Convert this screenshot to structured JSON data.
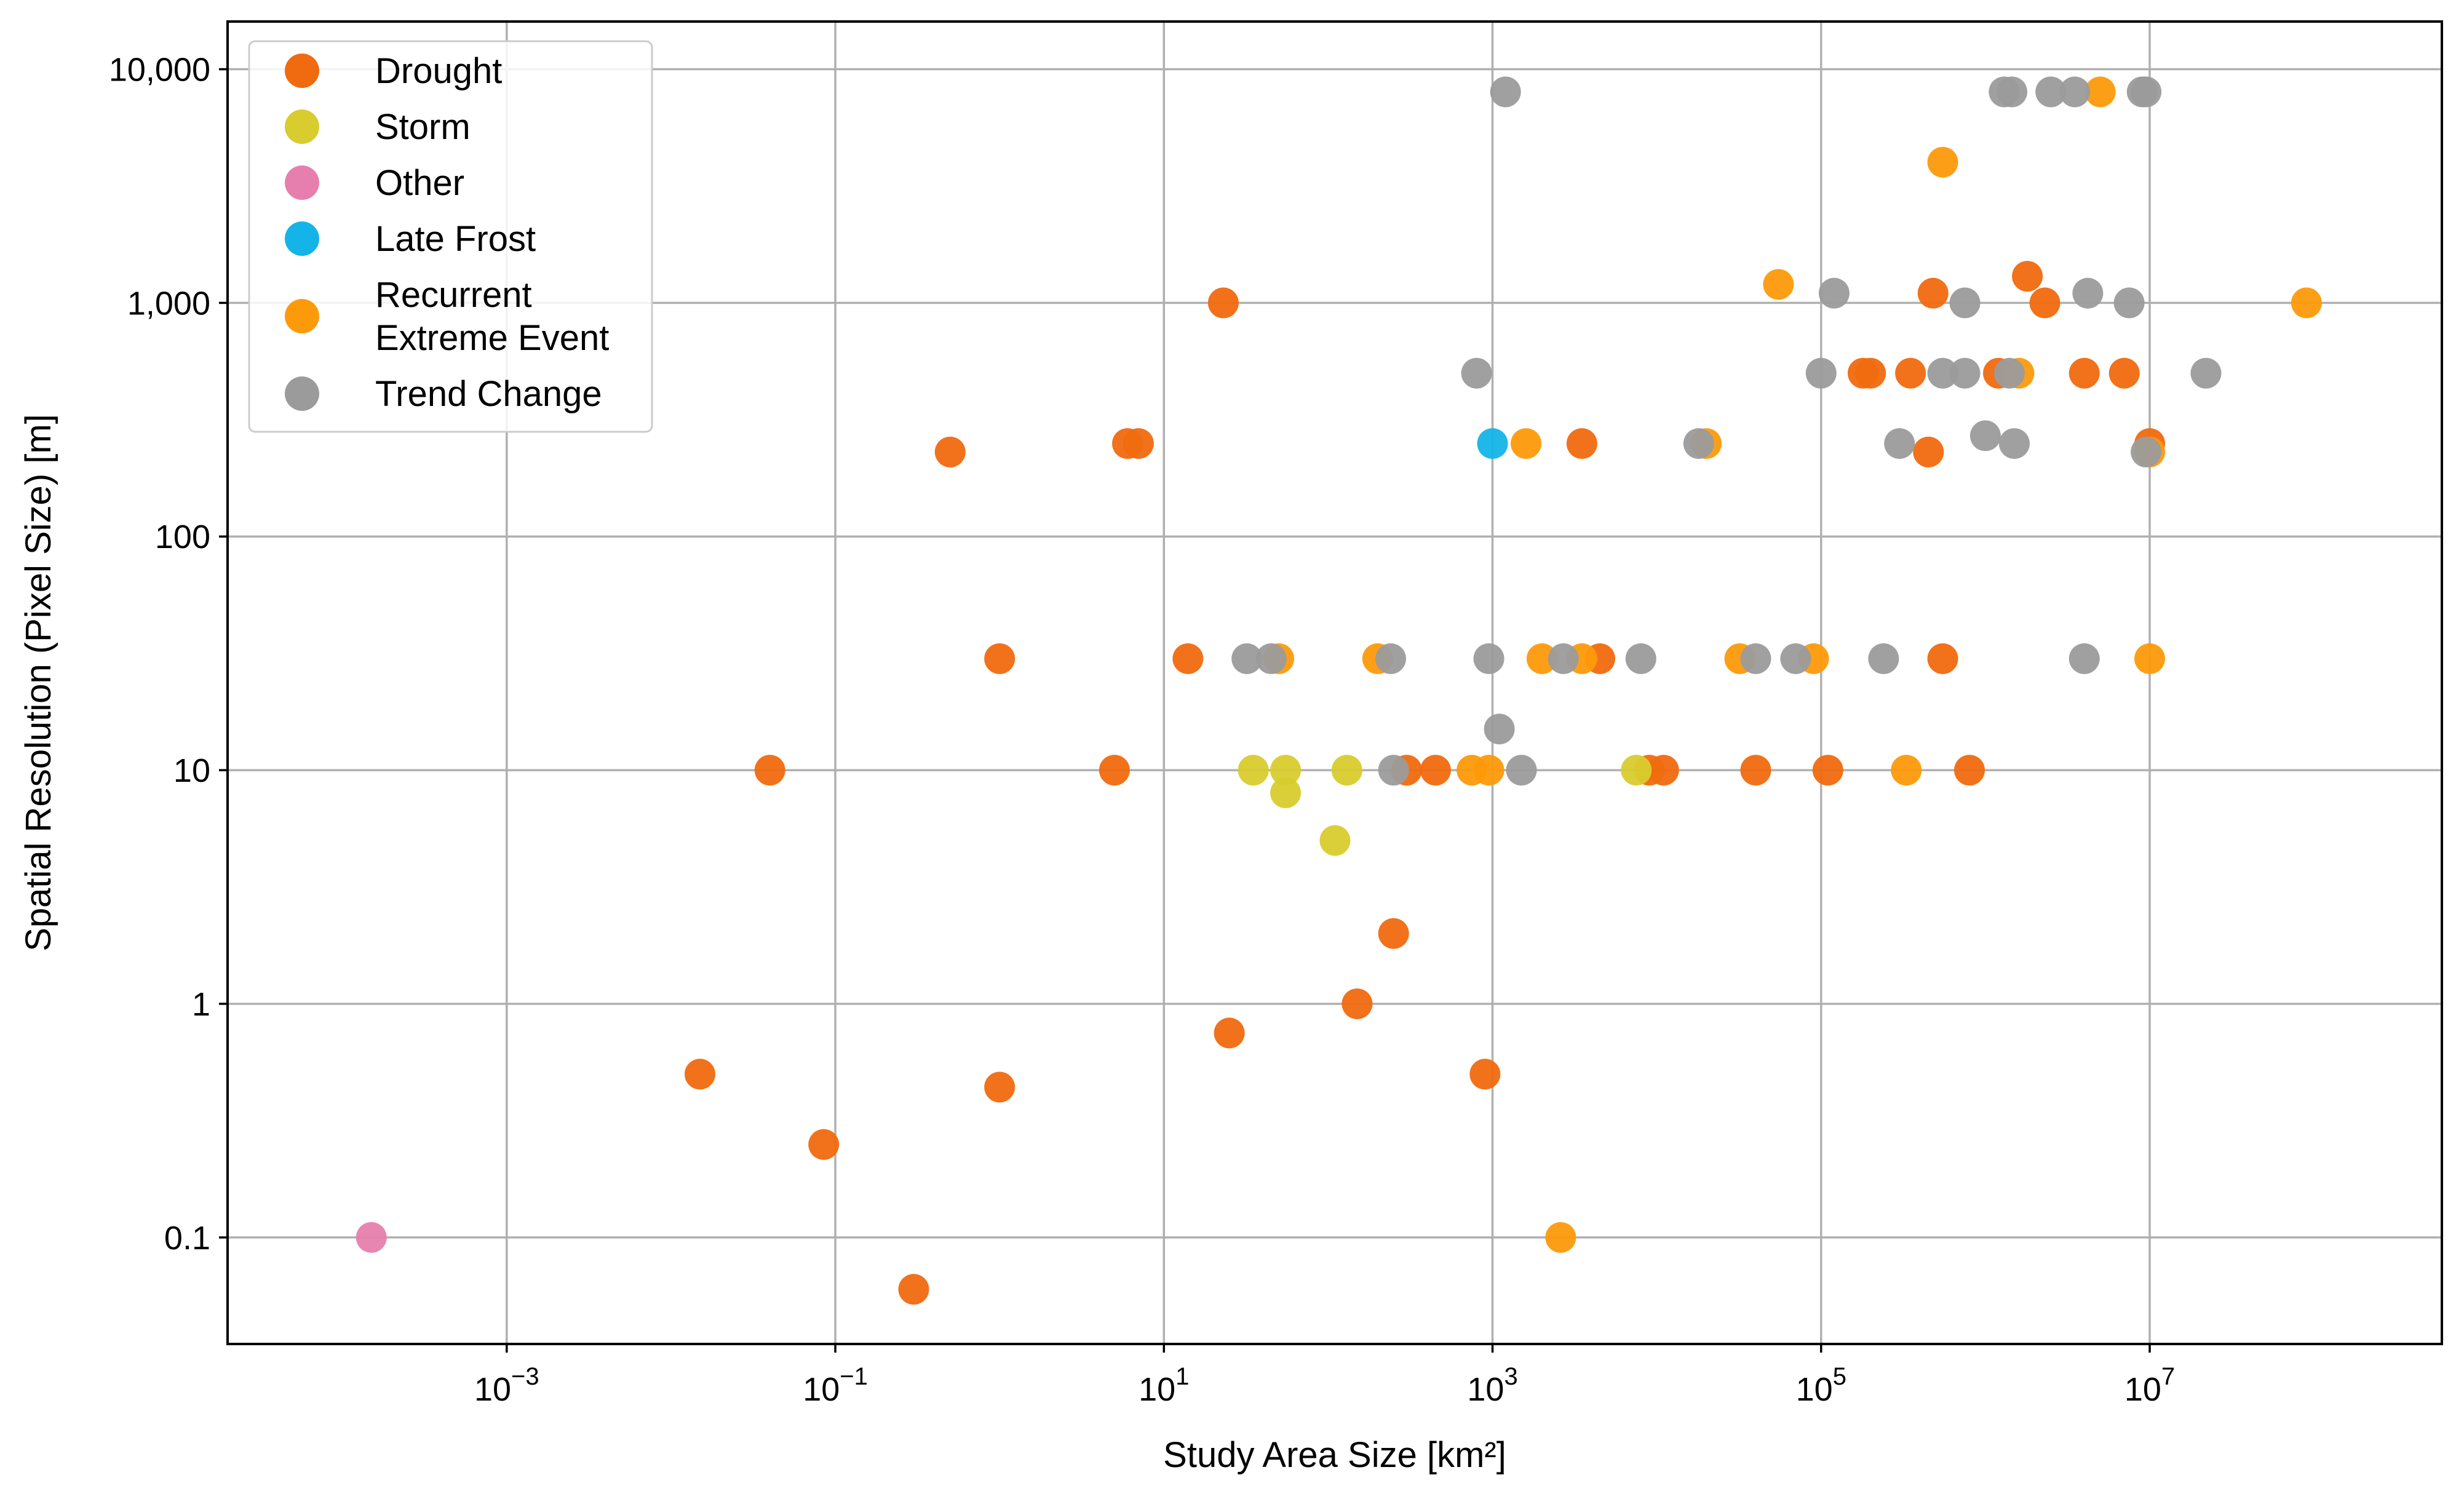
{
  "chart_data": {
    "type": "scatter",
    "title": "",
    "xlabel": "Study Area Size [km²]",
    "ylabel": "Spatial Resolution (Pixel Size) [m]",
    "xscale": "log",
    "yscale": "log",
    "xlim": [
      2e-05,
      600000000
    ],
    "ylim": [
      0.035,
      16000
    ],
    "grid": true,
    "legend_position": "top-left",
    "x_ticks": [
      {
        "value": 0.001,
        "base": "10",
        "exp": "−3"
      },
      {
        "value": 0.1,
        "base": "10",
        "exp": "−1"
      },
      {
        "value": 10,
        "base": "10",
        "exp": "1"
      },
      {
        "value": 1000,
        "base": "10",
        "exp": "3"
      },
      {
        "value": 100000,
        "base": "10",
        "exp": "5"
      },
      {
        "value": 10000000,
        "base": "10",
        "exp": "7"
      }
    ],
    "y_ticks": [
      {
        "value": 0.1,
        "label": "0.1"
      },
      {
        "value": 1,
        "label": "1"
      },
      {
        "value": 10,
        "label": "10"
      },
      {
        "value": 100,
        "label": "100"
      },
      {
        "value": 1000,
        "label": "1,000"
      },
      {
        "value": 10000,
        "label": "10,000"
      }
    ],
    "series": [
      {
        "name": "Drought",
        "color": "#f06a0f",
        "points": [
          [
            0.015,
            0.5
          ],
          [
            0.04,
            10
          ],
          [
            0.085,
            0.25
          ],
          [
            0.3,
            0.06
          ],
          [
            0.5,
            230
          ],
          [
            1.0,
            30
          ],
          [
            1.0,
            0.44
          ],
          [
            5.0,
            10
          ],
          [
            6.0,
            250
          ],
          [
            7.0,
            250
          ],
          [
            14,
            30
          ],
          [
            23,
            1000
          ],
          [
            25,
            0.75
          ],
          [
            150,
            1.0
          ],
          [
            250,
            2.0
          ],
          [
            300,
            10
          ],
          [
            450,
            10
          ],
          [
            900,
            0.5
          ],
          [
            3500,
            250
          ],
          [
            4500,
            30
          ],
          [
            9000,
            10
          ],
          [
            11000,
            10
          ],
          [
            40000,
            10
          ],
          [
            110000,
            10
          ],
          [
            180000,
            500
          ],
          [
            200000,
            500
          ],
          [
            350000,
            500
          ],
          [
            450000,
            230
          ],
          [
            480000,
            1100
          ],
          [
            550000,
            30
          ],
          [
            800000,
            10
          ],
          [
            1200000,
            500
          ],
          [
            1800000,
            1300
          ],
          [
            2300000,
            1000
          ],
          [
            4000000,
            500
          ],
          [
            7000000,
            500
          ],
          [
            10000000,
            250
          ]
        ]
      },
      {
        "name": "Storm",
        "color": "#d8cc2e",
        "points": [
          [
            35,
            10
          ],
          [
            55,
            10
          ],
          [
            55,
            8
          ],
          [
            110,
            5
          ],
          [
            130,
            10
          ],
          [
            7500,
            10
          ]
        ]
      },
      {
        "name": "Other",
        "color": "#e77fae",
        "points": [
          [
            0.00015,
            0.1
          ]
        ]
      },
      {
        "name": "Late Frost",
        "color": "#14b4e8",
        "points": [
          [
            1000,
            250
          ]
        ]
      },
      {
        "name": "Recurrent\nExtreme Event",
        "color": "#fd9a0a",
        "points": [
          [
            50,
            30
          ],
          [
            200,
            30
          ],
          [
            750,
            10
          ],
          [
            950,
            10
          ],
          [
            1600,
            250
          ],
          [
            2000,
            30
          ],
          [
            2600,
            0.1
          ],
          [
            3500,
            30
          ],
          [
            20000,
            250
          ],
          [
            32000,
            30
          ],
          [
            90000,
            30
          ],
          [
            330000,
            10
          ],
          [
            550000,
            4000
          ],
          [
            55000,
            1200
          ],
          [
            1600000,
            500
          ],
          [
            5000000,
            8000
          ],
          [
            10000000,
            230
          ],
          [
            10000000,
            30
          ],
          [
            90000000,
            1000
          ]
        ]
      },
      {
        "name": "Trend Change",
        "color": "#9b9b9b",
        "points": [
          [
            32,
            30
          ],
          [
            45,
            30
          ],
          [
            240,
            30
          ],
          [
            250,
            10
          ],
          [
            800,
            500
          ],
          [
            950,
            30
          ],
          [
            1100,
            15
          ],
          [
            1200,
            8000
          ],
          [
            1500,
            10
          ],
          [
            2700,
            30
          ],
          [
            8000,
            30
          ],
          [
            18000,
            250
          ],
          [
            40000,
            30
          ],
          [
            70000,
            30
          ],
          [
            100000,
            500
          ],
          [
            120000,
            1100
          ],
          [
            240000,
            30
          ],
          [
            300000,
            250
          ],
          [
            550000,
            500
          ],
          [
            750000,
            500
          ],
          [
            750000,
            1000
          ],
          [
            1000000,
            270
          ],
          [
            1300000,
            8000
          ],
          [
            1400000,
            500
          ],
          [
            1450000,
            8000
          ],
          [
            1500000,
            250
          ],
          [
            2500000,
            8000
          ],
          [
            3500000,
            8000
          ],
          [
            4000000,
            30
          ],
          [
            4200000,
            1100
          ],
          [
            7500000,
            1000
          ],
          [
            9000000,
            8000
          ],
          [
            9500000,
            8000
          ],
          [
            9500000,
            230
          ],
          [
            22000000,
            500
          ]
        ]
      }
    ]
  }
}
